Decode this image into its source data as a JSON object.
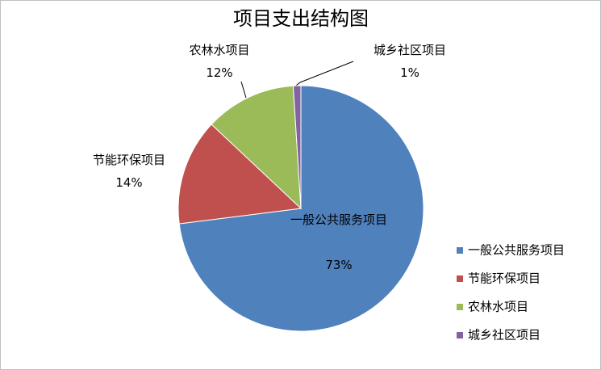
{
  "chart_data": {
    "type": "pie",
    "title": "项目支出结构图",
    "categories": [
      "一般公共服务项目",
      "节能环保项目",
      "农林水项目",
      "城乡社区项目"
    ],
    "values": [
      73,
      14,
      12,
      1
    ],
    "value_labels": [
      "73%",
      "14%",
      "12%",
      "1%"
    ],
    "colors": [
      "#4f81bd",
      "#c0504d",
      "#9bbb59",
      "#8064a2"
    ],
    "legend": "right"
  }
}
